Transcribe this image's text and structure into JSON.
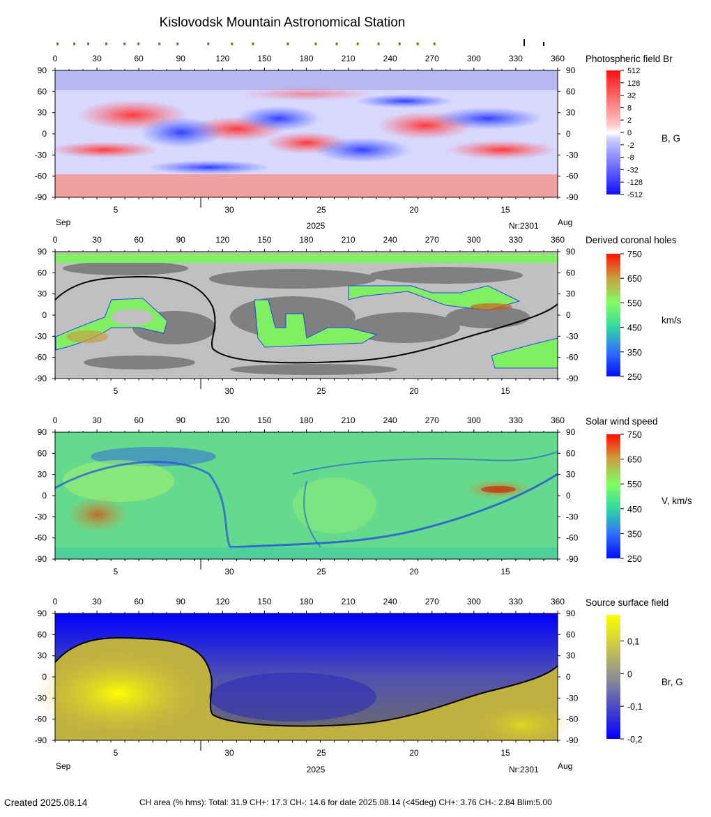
{
  "title": "Kislovodsk Mountain Astronomical Station",
  "lon_ticks": [
    "0",
    "30",
    "60",
    "90",
    "120",
    "150",
    "180",
    "210",
    "240",
    "270",
    "300",
    "330",
    "360"
  ],
  "lat_ticks": [
    "90",
    "60",
    "30",
    "0",
    "-30",
    "-60",
    "-90"
  ],
  "date_ticks": [
    "5",
    "30",
    "25",
    "20",
    "15"
  ],
  "sep_label": "Sep",
  "aug_label": "Aug",
  "year_label": "2025",
  "rotation_label": "Nr:2301",
  "footer": {
    "created": "Created  2025.08.14",
    "ch_area": "CH area (% hms): Total: 31.9 CH+: 17.3   CH-: 14.6 for date 2025.08.14 (<45deg) CH+: 3.76    CH-: 2.84 Blim:5.00"
  },
  "colors": {
    "red": "#ff0000",
    "blue": "#0000ff",
    "yellow": "#ffff00",
    "green": "#80ff60",
    "gray_dark": "#808080",
    "gray_light": "#c0c0c0"
  },
  "chart_data": [
    {
      "type": "heatmap",
      "title": "Photospheric field Br",
      "unit": "B, G",
      "colorbar_ticks": [
        "512",
        "128",
        "32",
        "8",
        "2",
        "0",
        "-2",
        "-8",
        "-32",
        "-128",
        "-512"
      ],
      "xlim": [
        0,
        360
      ],
      "ylim": [
        -90,
        90
      ]
    },
    {
      "type": "heatmap",
      "title": "Derived coronal holes",
      "unit": "km/s",
      "colorbar_ticks": [
        "750",
        "650",
        "550",
        "450",
        "350",
        "250"
      ],
      "xlim": [
        0,
        360
      ],
      "ylim": [
        -90,
        90
      ]
    },
    {
      "type": "heatmap",
      "title": "Solar wind speed",
      "unit": "V, km/s",
      "colorbar_ticks": [
        "750",
        "650",
        "550",
        "450",
        "350",
        "250"
      ],
      "xlim": [
        0,
        360
      ],
      "ylim": [
        -90,
        90
      ]
    },
    {
      "type": "heatmap",
      "title": "Source surface field",
      "unit": "Br, G",
      "colorbar_ticks": [
        "0,1",
        "0",
        "-0,1",
        "-0,2"
      ],
      "xlim": [
        0,
        360
      ],
      "ylim": [
        -90,
        90
      ]
    }
  ]
}
